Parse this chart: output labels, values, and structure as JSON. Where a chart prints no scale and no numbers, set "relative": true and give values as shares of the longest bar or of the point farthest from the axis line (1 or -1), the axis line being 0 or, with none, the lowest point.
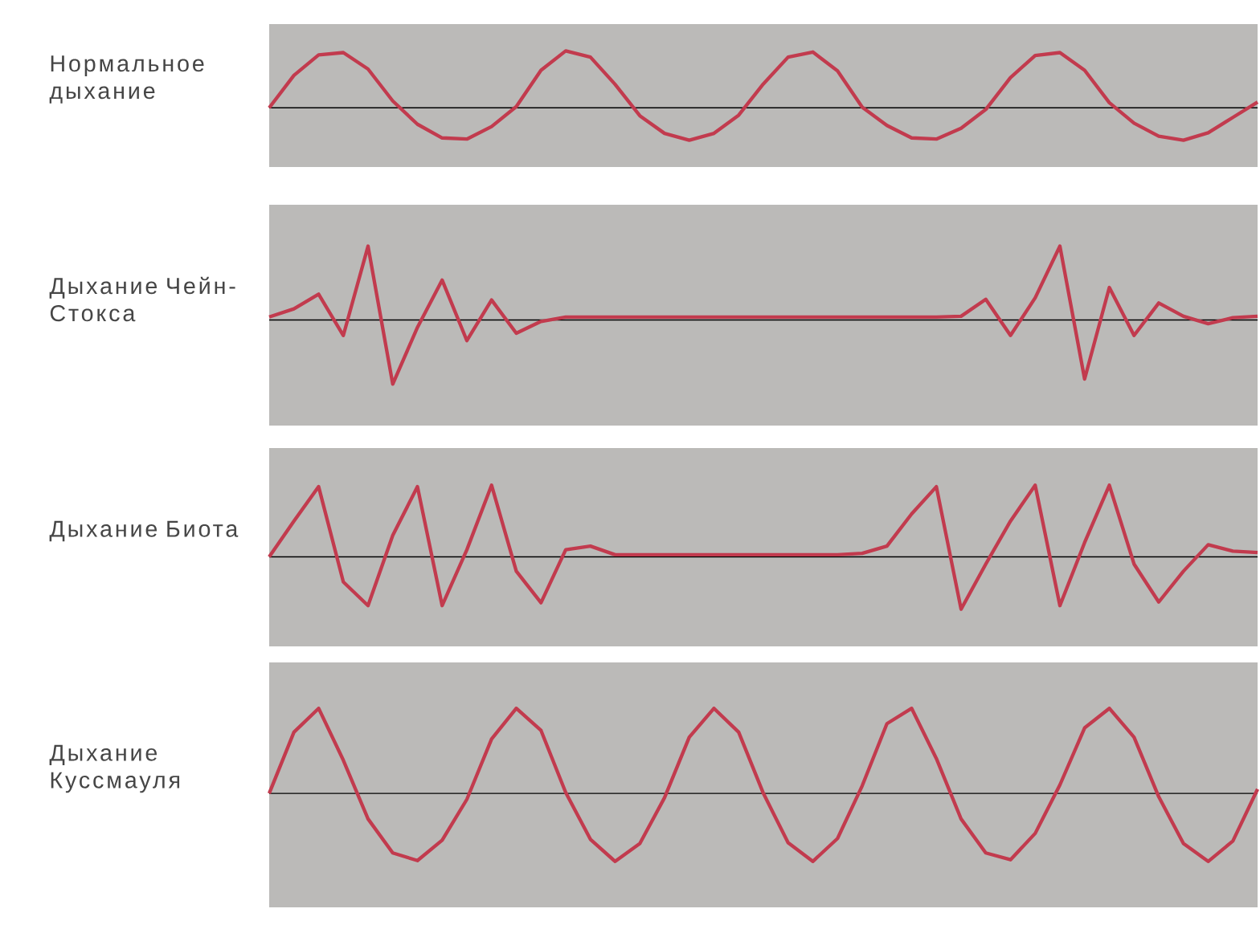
{
  "chart_data": [
    {
      "type": "line",
      "title": "Нормальное дыхание",
      "relative": true,
      "marker": "none",
      "color": "#c23b4e",
      "categories": [
        null,
        null,
        null,
        null,
        null,
        null,
        null,
        null,
        null,
        null,
        null,
        null,
        null,
        null,
        null,
        null,
        null,
        null,
        null,
        null,
        null,
        null,
        null,
        null,
        null,
        null,
        null,
        null,
        null,
        null,
        null,
        null,
        null,
        null,
        null,
        null,
        null,
        null,
        null,
        null,
        null
      ],
      "values": [
        0,
        0.57,
        0.93,
        0.97,
        0.68,
        0.12,
        -0.29,
        -0.53,
        -0.55,
        -0.33,
        0.02,
        0.66,
        1,
        0.89,
        0.41,
        -0.14,
        -0.45,
        -0.57,
        -0.45,
        -0.13,
        0.42,
        0.89,
        0.98,
        0.65,
        0.01,
        -0.31,
        -0.53,
        -0.55,
        -0.36,
        -0.03,
        0.53,
        0.92,
        0.97,
        0.66,
        0.09,
        -0.27,
        -0.5,
        -0.57,
        -0.44,
        -0.17,
        0.1
      ]
    },
    {
      "type": "line",
      "title": "Дыхание Чейн-Стокса",
      "relative": true,
      "marker": "none",
      "color": "#c23b4e",
      "categories": [
        null,
        null,
        null,
        null,
        null,
        null,
        null,
        null,
        null,
        null,
        null,
        null,
        null,
        null,
        null,
        null,
        null,
        null,
        null,
        null,
        null,
        null,
        null,
        null,
        null,
        null,
        null,
        null,
        null,
        null,
        null,
        null,
        null,
        null,
        null,
        null,
        null,
        null,
        null,
        null,
        null
      ],
      "values": [
        0.04,
        0.15,
        0.35,
        -0.21,
        1,
        -0.87,
        -0.1,
        0.54,
        -0.28,
        0.27,
        -0.18,
        -0.02,
        0.04,
        0.04,
        0.04,
        0.04,
        0.04,
        0.04,
        0.04,
        0.04,
        0.04,
        0.04,
        0.04,
        0.04,
        0.04,
        0.04,
        0.04,
        0.04,
        0.05,
        0.28,
        -0.21,
        0.3,
        1,
        -0.8,
        0.44,
        -0.21,
        0.23,
        0.05,
        -0.05,
        0.03,
        0.05
      ]
    },
    {
      "type": "line",
      "title": "Дыхание Биота",
      "relative": true,
      "marker": "none",
      "color": "#c23b4e",
      "categories": [
        null,
        null,
        null,
        null,
        null,
        null,
        null,
        null,
        null,
        null,
        null,
        null,
        null,
        null,
        null,
        null,
        null,
        null,
        null,
        null,
        null,
        null,
        null,
        null,
        null,
        null,
        null,
        null,
        null,
        null,
        null,
        null,
        null,
        null,
        null,
        null,
        null,
        null,
        null,
        null,
        null
      ],
      "values": [
        0,
        0.5,
        0.98,
        -0.35,
        -0.68,
        0.3,
        0.98,
        -0.68,
        0.1,
        1,
        -0.2,
        -0.64,
        0.1,
        0.15,
        0.03,
        0.03,
        0.03,
        0.03,
        0.03,
        0.03,
        0.03,
        0.03,
        0.03,
        0.03,
        0.05,
        0.15,
        0.6,
        0.98,
        -0.73,
        -0.1,
        0.5,
        1,
        -0.68,
        0.2,
        1,
        -0.1,
        -0.63,
        -0.2,
        0.17,
        0.08,
        0.06
      ]
    },
    {
      "type": "line",
      "title": "Дыхание Куссмауля",
      "relative": true,
      "marker": "none",
      "color": "#c23b4e",
      "categories": [
        null,
        null,
        null,
        null,
        null,
        null,
        null,
        null,
        null,
        null,
        null,
        null,
        null,
        null,
        null,
        null,
        null,
        null,
        null,
        null,
        null,
        null,
        null,
        null,
        null,
        null,
        null,
        null,
        null,
        null,
        null,
        null,
        null,
        null,
        null,
        null,
        null,
        null,
        null,
        null,
        null
      ],
      "values": [
        0,
        0.72,
        1,
        0.39,
        -0.3,
        -0.7,
        -0.79,
        -0.55,
        -0.07,
        0.64,
        1,
        0.74,
        0.01,
        -0.54,
        -0.8,
        -0.59,
        -0.05,
        0.66,
        1,
        0.72,
        0,
        -0.58,
        -0.8,
        -0.53,
        0.09,
        0.82,
        1,
        0.41,
        -0.3,
        -0.7,
        -0.78,
        -0.47,
        0.1,
        0.77,
        1,
        0.66,
        -0.04,
        -0.59,
        -0.8,
        -0.56,
        0.05
      ]
    }
  ]
}
